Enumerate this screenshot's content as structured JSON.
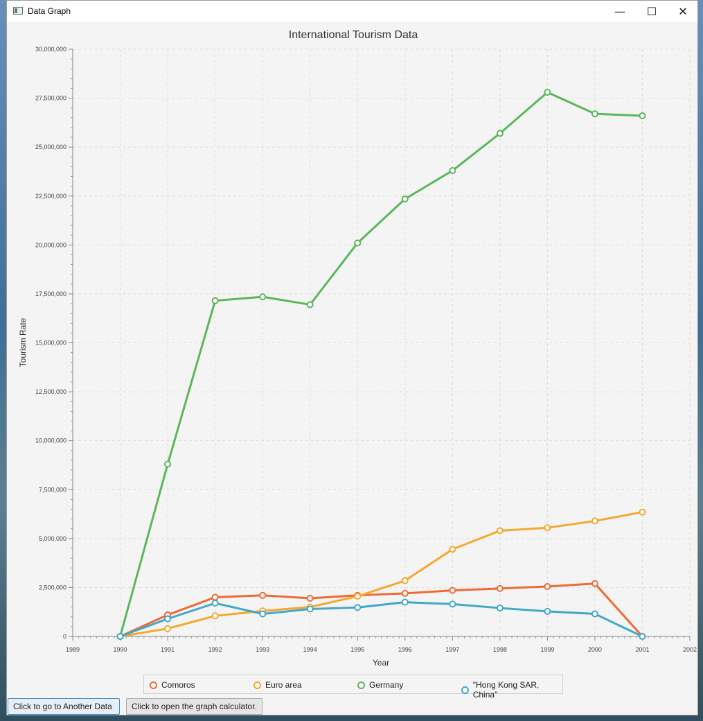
{
  "window": {
    "title": "Data Graph"
  },
  "controls": {
    "minimize": "—",
    "maximize": "☐",
    "close": "✕"
  },
  "buttons": {
    "another_data": "Click to go to Another Data",
    "graph_calculator": "Click to open the graph calculator."
  },
  "chart_data": {
    "type": "line",
    "title": "International Tourism Data",
    "xlabel": "Year",
    "ylabel": "Tourism Rate",
    "xlim": [
      1989,
      2002
    ],
    "ylim": [
      0,
      30000000
    ],
    "x_ticks": [
      "1989",
      "1990",
      "1991",
      "1992",
      "1993",
      "1994",
      "1995",
      "1996",
      "1997",
      "1998",
      "1999",
      "2000",
      "2001",
      "2002"
    ],
    "y_ticks": [
      "0",
      "2,500,000",
      "5,000,000",
      "7,500,000",
      "10,000,000",
      "12,500,000",
      "15,000,000",
      "17,500,000",
      "20,000,000",
      "22,500,000",
      "25,000,000",
      "27,500,000",
      "30,000,000"
    ],
    "grid": true,
    "legend_position": "bottom",
    "x": [
      1990,
      1991,
      1992,
      1993,
      1994,
      1995,
      1996,
      1997,
      1998,
      1999,
      2000,
      2001
    ],
    "series": [
      {
        "name": "Comoros",
        "color": "#ee6a35",
        "values": [
          0,
          1100000,
          2000000,
          2100000,
          1950000,
          2100000,
          2200000,
          2350000,
          2450000,
          2550000,
          2700000,
          0
        ]
      },
      {
        "name": "Euro area",
        "color": "#f5a72f",
        "values": [
          0,
          400000,
          1050000,
          1300000,
          1500000,
          2050000,
          2850000,
          4450000,
          5400000,
          5550000,
          5900000,
          6350000
        ]
      },
      {
        "name": "Germany",
        "color": "#5cb65a",
        "values": [
          0,
          8800000,
          17150000,
          17350000,
          16950000,
          20100000,
          22350000,
          23800000,
          25700000,
          27800000,
          26700000,
          26600000
        ]
      },
      {
        "name": "\"Hong Kong SAR, China\"",
        "color": "#42a8c8",
        "values": [
          0,
          900000,
          1700000,
          1150000,
          1400000,
          1480000,
          1750000,
          1650000,
          1450000,
          1280000,
          1150000,
          0
        ]
      }
    ]
  }
}
